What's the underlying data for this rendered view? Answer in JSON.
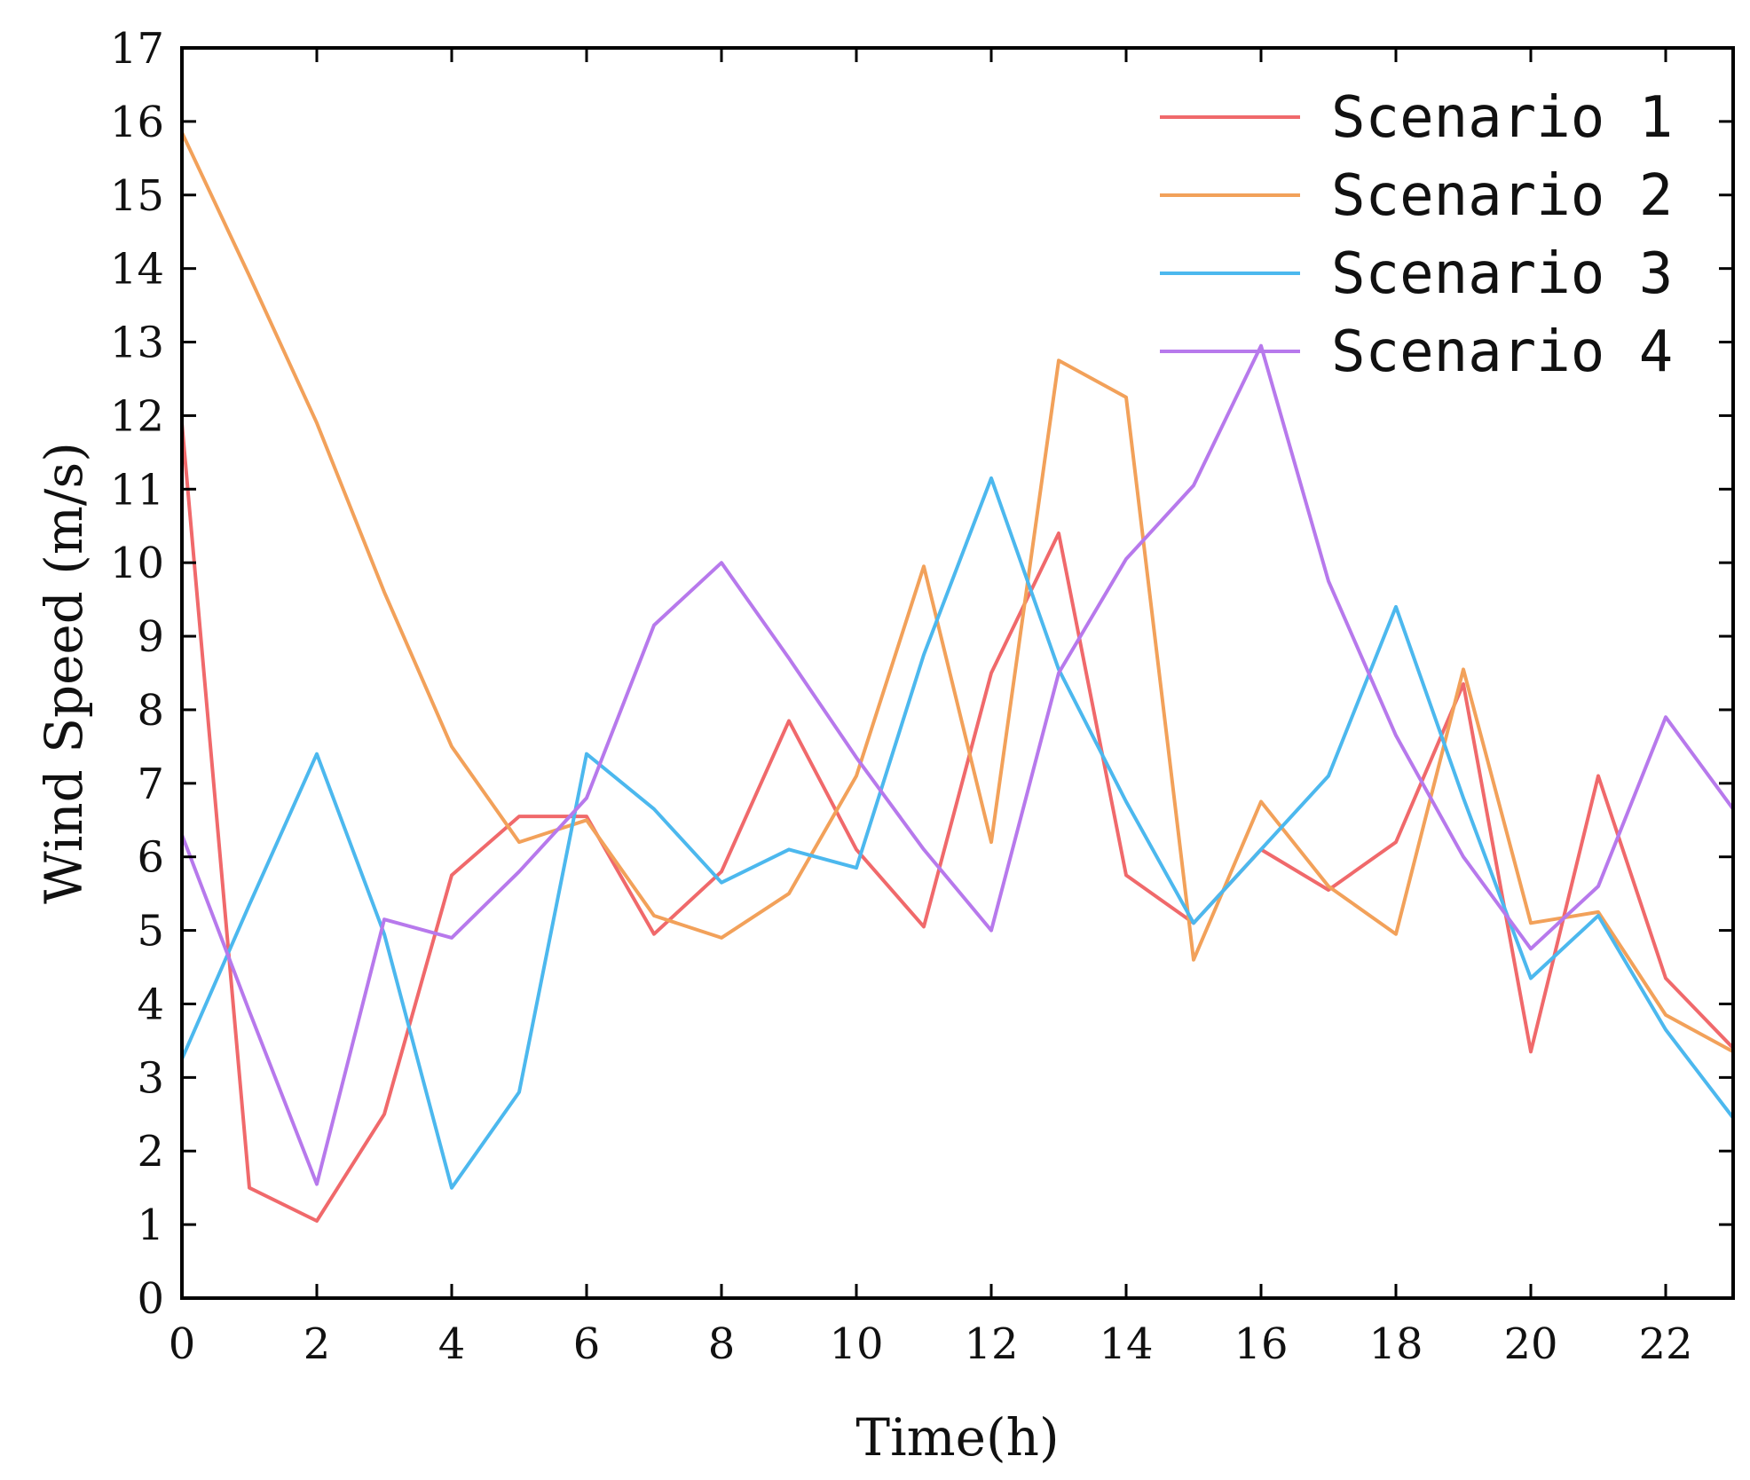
{
  "chart_data": {
    "type": "line",
    "title": "",
    "xlabel": "Time(h)",
    "ylabel": "Wind Speed (m/s)",
    "xlim": [
      0,
      23
    ],
    "ylim": [
      0,
      17
    ],
    "xticks": [
      0,
      2,
      4,
      6,
      8,
      10,
      12,
      14,
      16,
      18,
      20,
      22
    ],
    "yticks": [
      0,
      1,
      2,
      3,
      4,
      5,
      6,
      7,
      8,
      9,
      10,
      11,
      12,
      13,
      14,
      15,
      16,
      17
    ],
    "grid": false,
    "legend_position": "top-right",
    "x": [
      0,
      1,
      2,
      3,
      4,
      5,
      6,
      7,
      8,
      9,
      10,
      11,
      12,
      13,
      14,
      15,
      16,
      17,
      18,
      19,
      20,
      21,
      22,
      23
    ],
    "series": [
      {
        "name": "Scenario 1",
        "color": "#f0696b",
        "values": [
          11.9,
          1.5,
          1.05,
          2.5,
          5.75,
          6.55,
          6.55,
          4.95,
          5.8,
          7.85,
          6.1,
          5.05,
          8.5,
          10.4,
          5.75,
          5.1,
          6.1,
          5.55,
          6.2,
          8.35,
          3.35,
          7.1,
          4.35,
          3.4
        ]
      },
      {
        "name": "Scenario 2",
        "color": "#f2a15a",
        "values": [
          15.85,
          13.9,
          11.9,
          9.6,
          7.5,
          6.2,
          6.5,
          5.2,
          4.9,
          5.5,
          7.1,
          9.95,
          6.2,
          12.75,
          12.25,
          4.6,
          6.75,
          5.6,
          4.95,
          8.55,
          5.1,
          5.25,
          3.85,
          3.35
        ]
      },
      {
        "name": "Scenario 3",
        "color": "#4cb8ee",
        "values": [
          3.25,
          5.35,
          7.4,
          4.95,
          1.5,
          2.8,
          7.4,
          6.65,
          5.65,
          6.1,
          5.85,
          8.75,
          11.15,
          8.55,
          6.75,
          5.1,
          6.1,
          7.1,
          9.4,
          6.8,
          4.35,
          5.2,
          3.65,
          2.45
        ]
      },
      {
        "name": "Scenario 4",
        "color": "#b779ec",
        "values": [
          6.3,
          3.9,
          1.55,
          5.15,
          4.9,
          5.8,
          6.8,
          9.15,
          10.0,
          8.7,
          7.35,
          6.1,
          5.0,
          8.5,
          10.05,
          11.05,
          12.95,
          9.75,
          7.65,
          6.0,
          4.75,
          5.6,
          7.9,
          6.65
        ]
      }
    ]
  }
}
